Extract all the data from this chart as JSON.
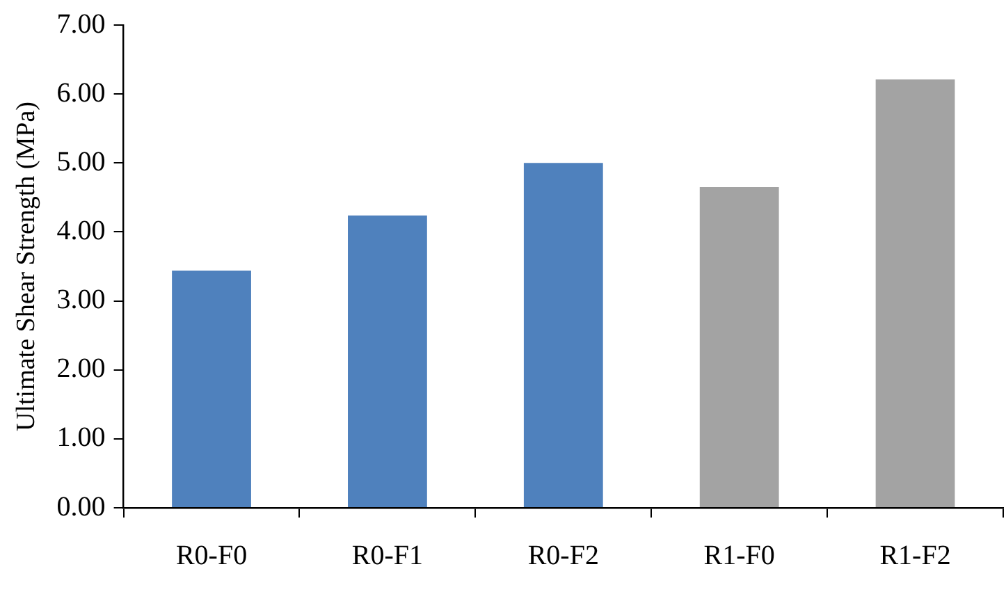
{
  "chart_data": {
    "type": "bar",
    "ylabel": "Ultimate Shear Strength (MPa)",
    "categories": [
      "R0-F0",
      "R0-F1",
      "R0-F2",
      "R1-F0",
      "R1-F2"
    ],
    "values": [
      3.44,
      4.24,
      5.0,
      4.65,
      6.21
    ],
    "colors": [
      "#4f81bd",
      "#4f81bd",
      "#4f81bd",
      "#a3a3a3",
      "#a3a3a3"
    ],
    "ylim": [
      0,
      7
    ],
    "yticks": [
      {
        "value": 0,
        "label": "0.00"
      },
      {
        "value": 1,
        "label": "1.00"
      },
      {
        "value": 2,
        "label": "2.00"
      },
      {
        "value": 3,
        "label": "3.00"
      },
      {
        "value": 4,
        "label": "4.00"
      },
      {
        "value": 5,
        "label": "5.00"
      },
      {
        "value": 6,
        "label": "6.00"
      },
      {
        "value": 7,
        "label": "7.00"
      }
    ],
    "grid": false,
    "legend": false
  }
}
